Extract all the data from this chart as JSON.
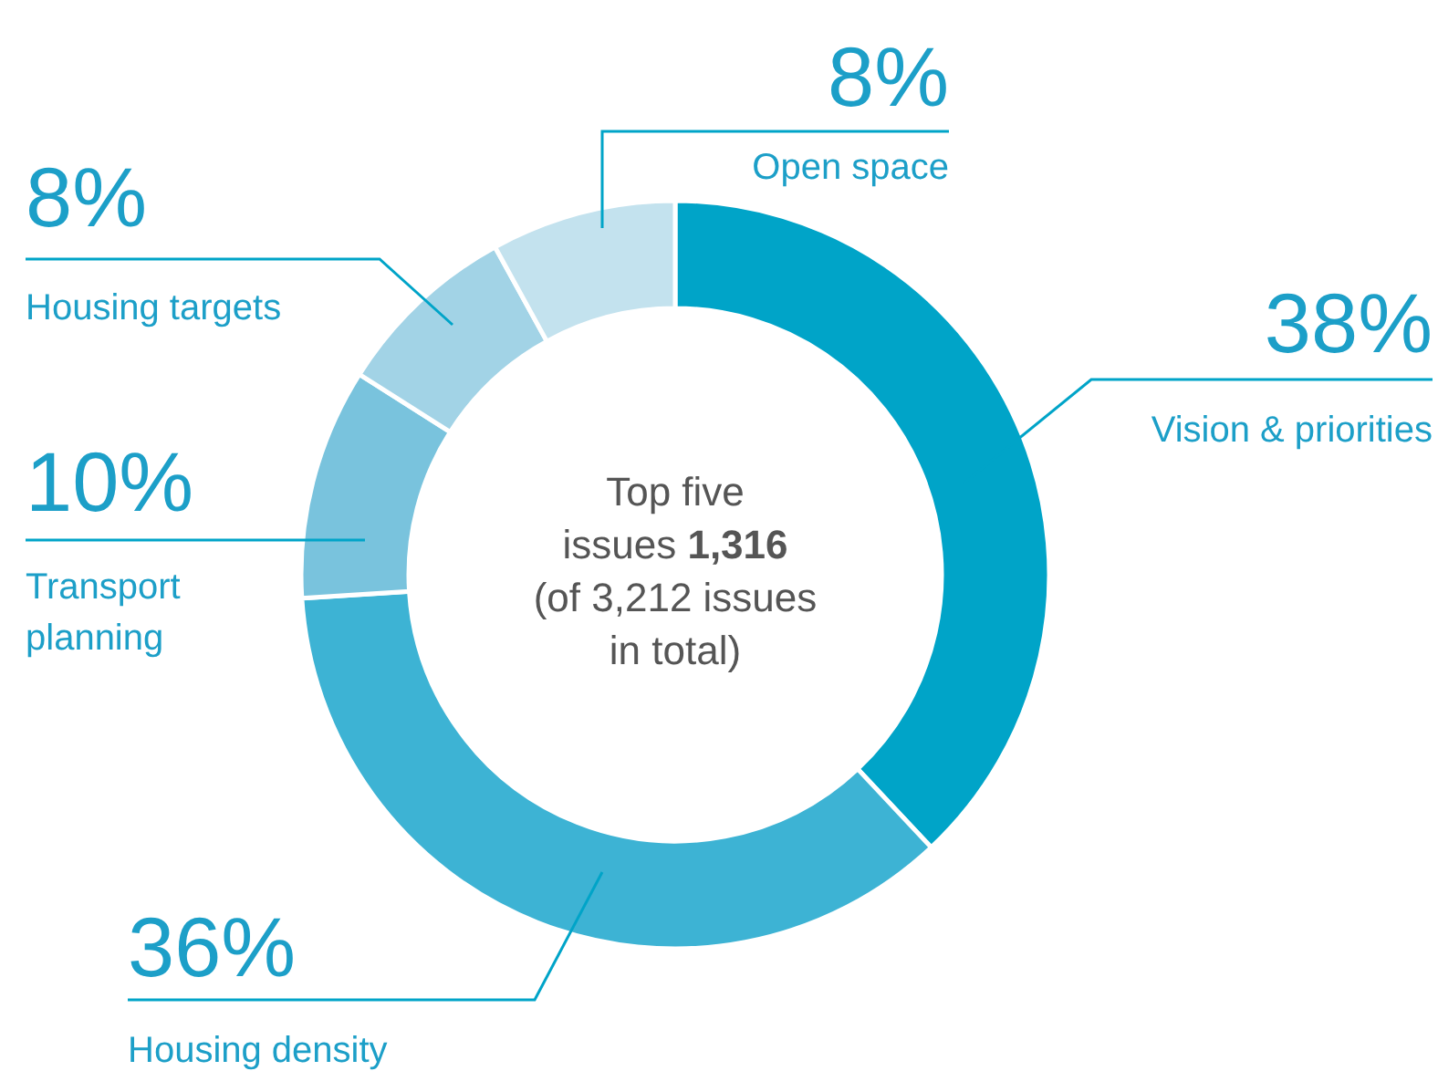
{
  "chart_data": {
    "type": "donut",
    "categories": [
      "Vision & priorities",
      "Housing density",
      "Transport planning",
      "Housing targets",
      "Open space"
    ],
    "values": [
      38,
      36,
      10,
      8,
      8
    ],
    "value_labels": [
      "38%",
      "36%",
      "10%",
      "8%",
      "8%"
    ],
    "colors": [
      "#00a4c8",
      "#3db3d4",
      "#79c3dd",
      "#a2d3e6",
      "#c3e2ee"
    ],
    "annotations": [
      "Top five issues",
      "1,316",
      "(of 3,212 issues in total)"
    ]
  }
}
